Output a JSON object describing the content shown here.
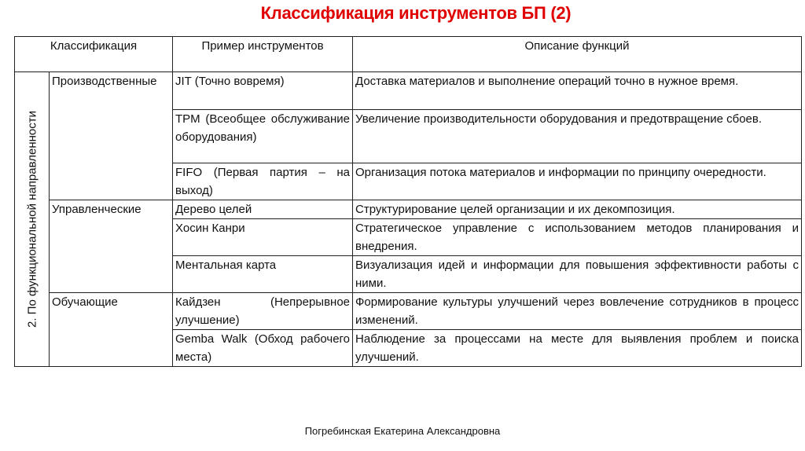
{
  "title": "Классификация инструментов БП (2)",
  "header": {
    "classification": "Классификация",
    "example": "Пример инструментов",
    "description": "Описание функций"
  },
  "group": "2. По функциональной направленности",
  "categories": [
    "Производственные",
    "Управленческие",
    "Обучающие"
  ],
  "rows": [
    {
      "tool": "JIT (Точно вовремя)",
      "desc": "Доставка материалов и выполнение операций точно в нужное время."
    },
    {
      "tool": "TPM (Всеобщее обслуживание оборудования)",
      "desc": "Увеличение производительности оборудования и предотвращение сбоев."
    },
    {
      "tool": "FIFO (Первая партия – на выход)",
      "desc": "Организация потока материалов и информации по принципу очередности."
    },
    {
      "tool": "Дерево целей",
      "desc": "Структурирование целей организации и их декомпозиция."
    },
    {
      "tool": "Хосин Канри",
      "desc": "Стратегическое управление с использованием методов планирования и внедрения."
    },
    {
      "tool": "Ментальная карта",
      "desc": "Визуализация идей и информации для повышения эффективности работы с ними."
    },
    {
      "tool": "Кайдзен (Непрерывное улучшение)",
      "desc": "Формирование культуры улучшений через вовлечение сотрудников в процесс изменений."
    },
    {
      "tool": "Gemba Walk (Обход рабочего места)",
      "desc": "Наблюдение за процессами на месте для выявления проблем и поиска улучшений."
    }
  ],
  "footer": "Погребинская Екатерина Александровна",
  "colors": {
    "title": "#e00000"
  }
}
